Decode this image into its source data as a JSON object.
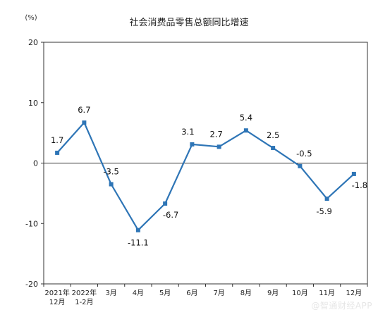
{
  "chart_data": {
    "type": "line",
    "title": "社会消费品零售总额同比增速",
    "unit_label": "(%)",
    "ylim": [
      -20,
      20
    ],
    "y_ticks": [
      "20",
      "10",
      "0",
      "-10",
      "-20"
    ],
    "grid": false,
    "categories": [
      [
        "2021年",
        "12月"
      ],
      [
        "2022年",
        "1-2月"
      ],
      [
        "3月"
      ],
      [
        "4月"
      ],
      [
        "5月"
      ],
      [
        "6月"
      ],
      [
        "7月"
      ],
      [
        "8月"
      ],
      [
        "9月"
      ],
      [
        "10月"
      ],
      [
        "11月"
      ],
      [
        "12月"
      ]
    ],
    "series": [
      {
        "values": [
          1.7,
          6.7,
          -3.5,
          -11.1,
          -6.7,
          3.1,
          2.7,
          5.4,
          2.5,
          -0.5,
          -5.9,
          -1.8
        ],
        "labels": [
          "1.7",
          "6.7",
          "-3.5",
          "-11.1",
          "-6.7",
          "3.1",
          "2.7",
          "5.4",
          "2.5",
          "-0.5",
          "-5.9",
          "-1.8"
        ],
        "color": "#2e75b6"
      }
    ]
  },
  "watermark": "@智通财经APP"
}
